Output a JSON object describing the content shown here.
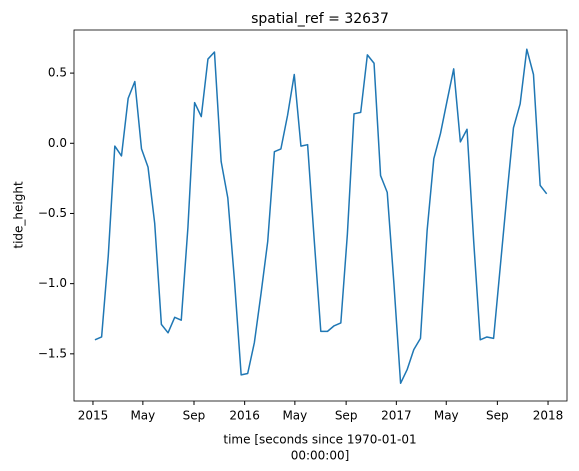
{
  "chart_data": {
    "type": "line",
    "title": "spatial_ref = 32637",
    "y_label": "tide_height",
    "x_label": [
      "time [seconds since 1970-01-01",
      "00:00:00]"
    ],
    "color": "#1f77b4",
    "x": [
      2015.013,
      2015.057,
      2015.101,
      2015.144,
      2015.188,
      2015.232,
      2015.276,
      2015.32,
      2015.363,
      2015.407,
      2015.451,
      2015.495,
      2015.539,
      2015.582,
      2015.626,
      2015.67,
      2015.714,
      2015.758,
      2015.801,
      2015.845,
      2015.889,
      2015.933,
      2015.977,
      2016.02,
      2016.064,
      2016.108,
      2016.152,
      2016.196,
      2016.239,
      2016.283,
      2016.327,
      2016.371,
      2016.415,
      2016.458,
      2016.502,
      2016.546,
      2016.59,
      2016.634,
      2016.677,
      2016.721,
      2016.765,
      2016.809,
      2016.853,
      2016.896,
      2016.94,
      2016.984,
      2017.028,
      2017.072,
      2017.115,
      2017.159,
      2017.203,
      2017.247,
      2017.291,
      2017.334,
      2017.378,
      2017.422,
      2017.466,
      2017.51,
      2017.553,
      2017.597,
      2017.641,
      2017.685,
      2017.729,
      2017.772,
      2017.816,
      2017.86,
      2017.904,
      2017.948,
      2017.991
    ],
    "values": [
      -1.4,
      -1.38,
      -0.8,
      -0.02,
      -0.09,
      0.32,
      0.44,
      -0.04,
      -0.17,
      -0.57,
      -1.29,
      -1.35,
      -1.24,
      -1.26,
      -0.6,
      0.29,
      0.19,
      0.6,
      0.65,
      -0.13,
      -0.39,
      -0.98,
      -1.65,
      -1.64,
      -1.42,
      -1.07,
      -0.7,
      -0.06,
      -0.04,
      0.2,
      0.49,
      -0.02,
      -0.01,
      -0.68,
      -1.34,
      -1.34,
      -1.3,
      -1.28,
      -0.65,
      0.21,
      0.22,
      0.63,
      0.57,
      -0.23,
      -0.35,
      -1.0,
      -1.71,
      -1.61,
      -1.47,
      -1.39,
      -0.62,
      -0.11,
      0.07,
      0.3,
      0.53,
      0.01,
      0.1,
      -0.7,
      -1.4,
      -1.38,
      -1.39,
      -0.88,
      -0.37,
      0.11,
      0.28,
      0.67,
      0.49,
      -0.3,
      -0.36
    ],
    "xlim": [
      2014.875,
      2018.125
    ],
    "xticks": [
      2015,
      {
        "value": 2015.329,
        "label": "May"
      },
      {
        "value": 2015.666,
        "label": "Sep"
      },
      2016,
      {
        "value": 2016.331,
        "label": "May"
      },
      {
        "value": 2016.669,
        "label": "Sep"
      },
      2017,
      {
        "value": 2017.329,
        "label": "May"
      },
      {
        "value": 2017.666,
        "label": "Sep"
      },
      2018
    ],
    "ylim": [
      -1.836,
      0.807
    ],
    "yticks": [
      {
        "value": -1.5,
        "label": "−1.5"
      },
      {
        "value": -1.0,
        "label": "−1.0"
      },
      {
        "value": -0.5,
        "label": "−0.5"
      },
      {
        "value": 0.0,
        "label": "0.0"
      },
      {
        "value": 0.5,
        "label": "0.5"
      }
    ]
  }
}
